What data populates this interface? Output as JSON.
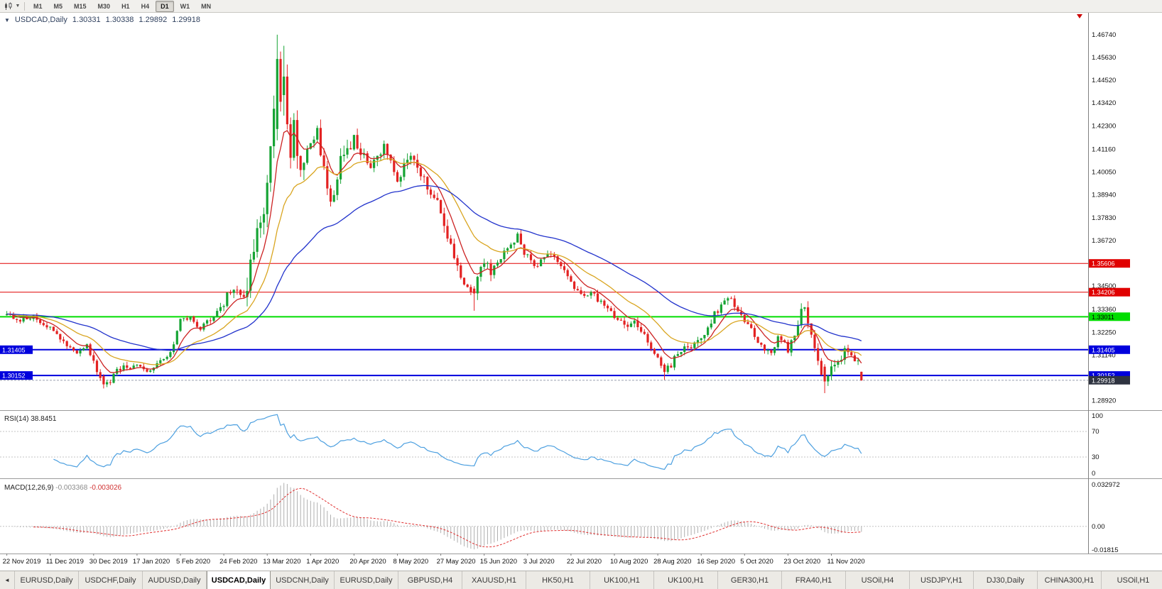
{
  "toolbar": {
    "dropdown_icon": "▼",
    "timeframes": [
      {
        "label": "M1",
        "active": false
      },
      {
        "label": "M5",
        "active": false
      },
      {
        "label": "M15",
        "active": false
      },
      {
        "label": "M30",
        "active": false
      },
      {
        "label": "H1",
        "active": false
      },
      {
        "label": "H4",
        "active": false
      },
      {
        "label": "D1",
        "active": true
      },
      {
        "label": "W1",
        "active": false
      },
      {
        "label": "MN",
        "active": false
      }
    ]
  },
  "chart_title": {
    "collapse_icon": "▼",
    "symbol": "USDCAD,Daily",
    "open": "1.30331",
    "high": "1.30338",
    "low": "1.29892",
    "close": "1.29918"
  },
  "tabs": {
    "scroll_icon": "◄",
    "items": [
      {
        "label": "EURUSD,Daily",
        "active": false
      },
      {
        "label": "USDCHF,Daily",
        "active": false
      },
      {
        "label": "AUDUSD,Daily",
        "active": false
      },
      {
        "label": "USDCAD,Daily",
        "active": true
      },
      {
        "label": "USDCNH,Daily",
        "active": false
      },
      {
        "label": "EURUSD,Daily",
        "active": false
      },
      {
        "label": "GBPUSD,H4",
        "active": false
      },
      {
        "label": "XAUUSD,H1",
        "active": false
      },
      {
        "label": "HK50,H1",
        "active": false
      },
      {
        "label": "UK100,H1",
        "active": false
      },
      {
        "label": "UK100,H1",
        "active": false
      },
      {
        "label": "GER30,H1",
        "active": false
      },
      {
        "label": "FRA40,H1",
        "active": false
      },
      {
        "label": "USOil,H4",
        "active": false
      },
      {
        "label": "USDJPY,H1",
        "active": false
      },
      {
        "label": "DJ30,Daily",
        "active": false
      },
      {
        "label": "CHINA300,H1",
        "active": false
      },
      {
        "label": "USOil,H1",
        "active": false
      }
    ]
  },
  "chart_data": {
    "type": "candlestick",
    "symbol": "USDCAD",
    "timeframe": "Daily",
    "ohlc_current": {
      "open": 1.30331,
      "high": 1.30338,
      "low": 1.29892,
      "close": 1.29918
    },
    "candle_colors": {
      "up": "#16A434",
      "down": "#E32222"
    },
    "y_axis": {
      "price_max": 1.476,
      "price_min": 1.286,
      "ticks": [
        "1.46740",
        "1.45630",
        "1.44520",
        "1.43420",
        "1.42300",
        "1.41160",
        "1.40050",
        "1.38940",
        "1.37830",
        "1.36720",
        "1.34500",
        "1.33360",
        "1.32250",
        "1.31140",
        "1.28920"
      ]
    },
    "x_axis": {
      "labels": [
        "22 Nov 2019",
        "11 Dec 2019",
        "30 Dec 2019",
        "17 Jan 2020",
        "5 Feb 2020",
        "24 Feb 2020",
        "13 Mar 2020",
        "1 Apr 2020",
        "20 Apr 2020",
        "8 May 2020",
        "27 May 2020",
        "15 Jun 2020",
        "3 Jul 2020",
        "22 Jul 2020",
        "10 Aug 2020",
        "28 Aug 2020",
        "16 Sep 2020",
        "5 Oct 2020",
        "23 Oct 2020",
        "11 Nov 2020"
      ],
      "label_bar_interval": 13
    },
    "bar_count": 257,
    "price_path": [
      [
        0,
        1.3308
      ],
      [
        4,
        1.329
      ],
      [
        8,
        1.33
      ],
      [
        13,
        1.3245
      ],
      [
        17,
        1.3175
      ],
      [
        21,
        1.312
      ],
      [
        24,
        1.3168
      ],
      [
        26,
        1.3075
      ],
      [
        29,
        1.2968
      ],
      [
        31,
        1.2996
      ],
      [
        34,
        1.3048
      ],
      [
        39,
        1.3058
      ],
      [
        43,
        1.304
      ],
      [
        46,
        1.3085
      ],
      [
        49,
        1.312
      ],
      [
        52,
        1.3282
      ],
      [
        55,
        1.329
      ],
      [
        58,
        1.325
      ],
      [
        61,
        1.3288
      ],
      [
        64,
        1.3342
      ],
      [
        66,
        1.3402
      ],
      [
        68,
        1.3445
      ],
      [
        70,
        1.339
      ],
      [
        72,
        1.342
      ],
      [
        74,
        1.365
      ],
      [
        76,
        1.372
      ],
      [
        78,
        1.392
      ],
      [
        80,
        1.4265
      ],
      [
        81,
        1.455
      ],
      [
        82,
        1.436
      ],
      [
        83,
        1.447
      ],
      [
        84,
        1.423
      ],
      [
        85,
        1.406
      ],
      [
        86,
        1.421
      ],
      [
        88,
        1.399
      ],
      [
        90,
        1.408
      ],
      [
        91,
        1.4155
      ],
      [
        93,
        1.423
      ],
      [
        94,
        1.406
      ],
      [
        96,
        1.393
      ],
      [
        98,
        1.387
      ],
      [
        100,
        1.405
      ],
      [
        102,
        1.412
      ],
      [
        104,
        1.4185
      ],
      [
        106,
        1.4095
      ],
      [
        109,
        1.4025
      ],
      [
        111,
        1.409
      ],
      [
        113,
        1.4125
      ],
      [
        115,
        1.405
      ],
      [
        117,
        1.3975
      ],
      [
        119,
        1.4035
      ],
      [
        121,
        1.4105
      ],
      [
        123,
        1.4035
      ],
      [
        125,
        1.3985
      ],
      [
        127,
        1.3905
      ],
      [
        129,
        1.3855
      ],
      [
        130,
        1.3788
      ],
      [
        132,
        1.3705
      ],
      [
        134,
        1.3608
      ],
      [
        136,
        1.3465
      ],
      [
        138,
        1.3428
      ],
      [
        140,
        1.3415
      ],
      [
        141,
        1.348
      ],
      [
        143,
        1.356
      ],
      [
        145,
        1.352
      ],
      [
        147,
        1.3575
      ],
      [
        149,
        1.362
      ],
      [
        151,
        1.365
      ],
      [
        153,
        1.369
      ],
      [
        154,
        1.3648
      ],
      [
        156,
        1.359
      ],
      [
        158,
        1.3545
      ],
      [
        160,
        1.358
      ],
      [
        162,
        1.3605
      ],
      [
        164,
        1.358
      ],
      [
        166,
        1.3545
      ],
      [
        168,
        1.3505
      ],
      [
        169,
        1.347
      ],
      [
        171,
        1.3415
      ],
      [
        173,
        1.3405
      ],
      [
        175,
        1.3435
      ],
      [
        177,
        1.339
      ],
      [
        179,
        1.3345
      ],
      [
        182,
        1.331
      ],
      [
        184,
        1.3275
      ],
      [
        186,
        1.324
      ],
      [
        188,
        1.3268
      ],
      [
        190,
        1.3225
      ],
      [
        192,
        1.3185
      ],
      [
        195,
        1.3105
      ],
      [
        197,
        1.3035
      ],
      [
        199,
        1.307
      ],
      [
        201,
        1.3115
      ],
      [
        203,
        1.3155
      ],
      [
        205,
        1.3165
      ],
      [
        207,
        1.3185
      ],
      [
        208,
        1.3205
      ],
      [
        210,
        1.3255
      ],
      [
        212,
        1.331
      ],
      [
        214,
        1.3365
      ],
      [
        216,
        1.34
      ],
      [
        218,
        1.3355
      ],
      [
        220,
        1.331
      ],
      [
        221,
        1.3285
      ],
      [
        223,
        1.323
      ],
      [
        225,
        1.3185
      ],
      [
        227,
        1.3145
      ],
      [
        229,
        1.313
      ],
      [
        231,
        1.319
      ],
      [
        233,
        1.3165
      ],
      [
        234,
        1.314
      ],
      [
        236,
        1.322
      ],
      [
        238,
        1.333
      ],
      [
        239,
        1.336
      ],
      [
        240,
        1.329
      ],
      [
        241,
        1.32
      ],
      [
        242,
        1.3135
      ],
      [
        243,
        1.308
      ],
      [
        244,
        1.304
      ],
      [
        245,
        1.2985
      ],
      [
        246,
        1.301
      ],
      [
        247,
        1.3042
      ],
      [
        249,
        1.309
      ],
      [
        251,
        1.3125
      ],
      [
        253,
        1.3105
      ],
      [
        255,
        1.3075
      ],
      [
        256,
        1.2992
      ]
    ],
    "key_candles": {
      "29": [
        1.3012,
        1.3021,
        1.2952,
        1.2972
      ],
      "81": [
        1.4215,
        1.4674,
        1.416,
        1.4556
      ],
      "83": [
        1.438,
        1.462,
        1.428,
        1.447
      ],
      "140": [
        1.3438,
        1.345,
        1.333,
        1.3415
      ],
      "197": [
        1.3068,
        1.3075,
        1.2994,
        1.3032
      ],
      "245": [
        1.3058,
        1.307,
        1.2929,
        1.2986
      ],
      "256": [
        1.30331,
        1.30338,
        1.29892,
        1.29918
      ]
    },
    "volatility_zones": [
      [
        0,
        26,
        0.0028
      ],
      [
        26,
        40,
        0.004
      ],
      [
        40,
        64,
        0.0028
      ],
      [
        64,
        72,
        0.0046
      ],
      [
        72,
        88,
        0.012
      ],
      [
        88,
        104,
        0.009
      ],
      [
        104,
        130,
        0.0058
      ],
      [
        130,
        146,
        0.006
      ],
      [
        146,
        195,
        0.0036
      ],
      [
        195,
        221,
        0.004
      ],
      [
        221,
        236,
        0.0036
      ],
      [
        236,
        252,
        0.0055
      ],
      [
        252,
        257,
        0.0034
      ]
    ],
    "moving_averages": [
      {
        "name": "fast-ma",
        "period": 8,
        "color": "#CC2222"
      },
      {
        "name": "medium-ma",
        "period": 21,
        "color": "#D9A520"
      },
      {
        "name": "slow-ma",
        "period": 55,
        "color": "#2233CC"
      }
    ],
    "horizontal_lines": [
      {
        "price": 1.35606,
        "label": "1.35606",
        "color": "#E00000",
        "text_color": "#FFFFFF",
        "width": 1,
        "left_label": false
      },
      {
        "price": 1.34206,
        "label": "1.34206",
        "color": "#E00000",
        "text_color": "#FFFFFF",
        "width": 1,
        "left_label": false
      },
      {
        "price": 1.33011,
        "label": "1.33011",
        "color": "#00DD00",
        "text_color": "#000000",
        "width": 2,
        "left_label": false
      },
      {
        "price": 1.31405,
        "label": "1.31405",
        "color": "#0000DD",
        "text_color": "#FFFFFF",
        "width": 2,
        "left_label": true
      },
      {
        "price": 1.30152,
        "label": "1.30152",
        "color": "#0000DD",
        "text_color": "#FFFFFF",
        "width": 2,
        "left_label": true
      }
    ],
    "current_price": {
      "value": 1.29918,
      "label": "1.29918",
      "line_color": "#9AA0B0",
      "box_color": "#2E3340",
      "text_color": "#FFFFFF"
    },
    "indicators": {
      "rsi": {
        "label": "RSI(14)",
        "value": "38.8451",
        "period": 14,
        "levels": [
          "100",
          "70",
          "30",
          "0"
        ],
        "dotted_levels": [
          70,
          30
        ],
        "line_color": "#4DA0E0"
      },
      "macd": {
        "label": "MACD(12,26,9)",
        "macd_value": "-0.003368",
        "signal_value": "-0.003026",
        "fast": 12,
        "slow": 26,
        "signal": 9,
        "scale_top": "0.032972",
        "scale_zero": "0.00",
        "scale_bottom": "-0.01815",
        "histogram_color": "#AFAFAF",
        "signal_color": "#E03030"
      }
    }
  }
}
